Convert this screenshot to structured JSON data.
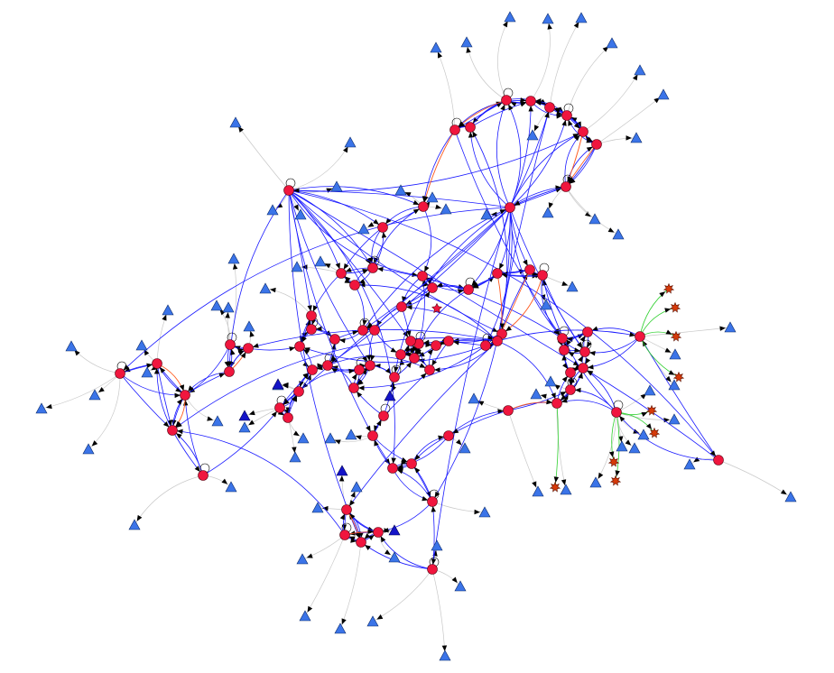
{
  "diagram": {
    "type": "directed-network-graph",
    "node_types": {
      "circle": {
        "shape": "circle",
        "fill": "#f0163e",
        "stroke": "#5a0010"
      },
      "triangle": {
        "shape": "triangle",
        "fill": "#3b74e8",
        "stroke": "#0b2a6b"
      },
      "triangle_dark": {
        "shape": "triangle",
        "fill": "#1414c8",
        "stroke": "#000050"
      },
      "star": {
        "shape": "star",
        "fill": "#d63a0a",
        "stroke": "#5a1000"
      },
      "star_center": {
        "shape": "star",
        "fill": "#f0163e",
        "stroke": "#5a0010"
      }
    },
    "edge_colors": {
      "core": "#1a1aff",
      "peripheral": "#c8c8c8",
      "highlight": "#ff5a1e",
      "star_link": "#2fd02f"
    },
    "self_loops": true,
    "arrowheads": true
  }
}
